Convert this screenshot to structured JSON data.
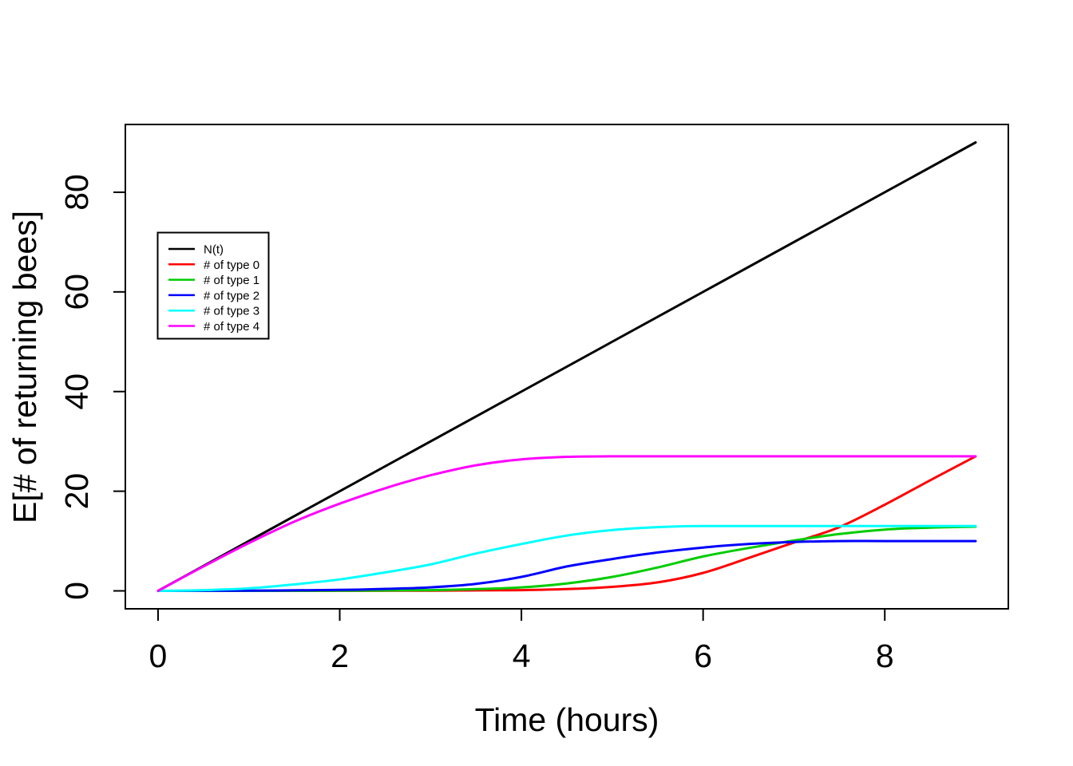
{
  "figure": {
    "background": "#ffffff"
  },
  "chart_data": {
    "type": "line",
    "title": "",
    "xlabel": "Time (hours)",
    "ylabel": "E[# of returning bees]",
    "xlim": [
      0,
      9
    ],
    "ylim": [
      0,
      90
    ],
    "xticks": [
      0,
      2,
      4,
      6,
      8
    ],
    "yticks": [
      0,
      20,
      40,
      60,
      80
    ],
    "grid": false,
    "legend_position": "upper-left-inside",
    "axis_color": "#000000",
    "series": [
      {
        "name": "N(t)",
        "color": "#000000",
        "points": [
          [
            0,
            0
          ],
          [
            9,
            90
          ]
        ]
      },
      {
        "name": "# of type 0",
        "color": "#FF0000",
        "points": [
          [
            0,
            0
          ],
          [
            1,
            0
          ],
          [
            2,
            0.02
          ],
          [
            3,
            0.05
          ],
          [
            3.5,
            0.1
          ],
          [
            4,
            0.15
          ],
          [
            4.5,
            0.35
          ],
          [
            5,
            0.8
          ],
          [
            5.5,
            1.7
          ],
          [
            6,
            3.6
          ],
          [
            6.5,
            6.6
          ],
          [
            7,
            9.7
          ],
          [
            7.5,
            12.8
          ],
          [
            8,
            17.3
          ],
          [
            8.5,
            22.2
          ],
          [
            9,
            27
          ]
        ]
      },
      {
        "name": "# of type 1",
        "color": "#00CC00",
        "points": [
          [
            0,
            0
          ],
          [
            1,
            0
          ],
          [
            2,
            0.05
          ],
          [
            3,
            0.15
          ],
          [
            3.5,
            0.35
          ],
          [
            4,
            0.7
          ],
          [
            4.5,
            1.5
          ],
          [
            5,
            2.8
          ],
          [
            5.5,
            4.7
          ],
          [
            6,
            6.9
          ],
          [
            6.5,
            8.6
          ],
          [
            7,
            10.1
          ],
          [
            7.5,
            11.4
          ],
          [
            8,
            12.3
          ],
          [
            8.5,
            12.7
          ],
          [
            9,
            12.9
          ]
        ]
      },
      {
        "name": "# of type 2",
        "color": "#0000FF",
        "points": [
          [
            0,
            0
          ],
          [
            1,
            0.05
          ],
          [
            2,
            0.2
          ],
          [
            2.5,
            0.4
          ],
          [
            3,
            0.7
          ],
          [
            3.5,
            1.4
          ],
          [
            4,
            2.8
          ],
          [
            4.5,
            4.9
          ],
          [
            5,
            6.4
          ],
          [
            5.5,
            7.7
          ],
          [
            6,
            8.7
          ],
          [
            6.5,
            9.4
          ],
          [
            7,
            9.8
          ],
          [
            7.5,
            10
          ],
          [
            8,
            10
          ],
          [
            9,
            10
          ]
        ]
      },
      {
        "name": "# of type 3",
        "color": "#00FFFF",
        "points": [
          [
            0,
            0
          ],
          [
            0.5,
            0.15
          ],
          [
            1,
            0.5
          ],
          [
            1.5,
            1.3
          ],
          [
            2,
            2.3
          ],
          [
            2.5,
            3.7
          ],
          [
            3,
            5.3
          ],
          [
            3.5,
            7.5
          ],
          [
            4,
            9.4
          ],
          [
            4.5,
            11.1
          ],
          [
            5,
            12.2
          ],
          [
            5.5,
            12.8
          ],
          [
            6,
            13
          ],
          [
            7,
            13
          ],
          [
            8,
            13
          ],
          [
            9,
            13
          ]
        ]
      },
      {
        "name": "# of type 4",
        "color": "#FF00FF",
        "points": [
          [
            0,
            0
          ],
          [
            0.5,
            4.9
          ],
          [
            1,
            9.6
          ],
          [
            1.5,
            13.9
          ],
          [
            2,
            17.5
          ],
          [
            2.5,
            20.6
          ],
          [
            3,
            23.2
          ],
          [
            3.5,
            25.2
          ],
          [
            4,
            26.4
          ],
          [
            4.5,
            26.9
          ],
          [
            5,
            27
          ],
          [
            6,
            27
          ],
          [
            7,
            27
          ],
          [
            8,
            27
          ],
          [
            9,
            27
          ]
        ]
      }
    ]
  }
}
